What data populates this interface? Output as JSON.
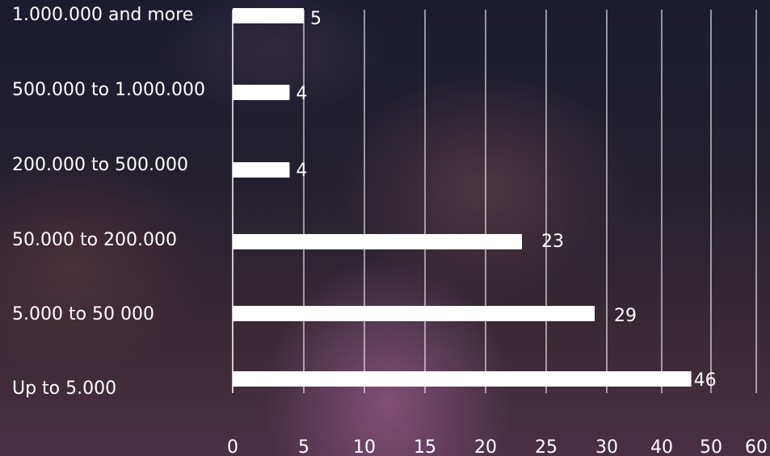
{
  "chart_data": {
    "type": "bar",
    "orientation": "horizontal",
    "categories": [
      "1.000.000 and more",
      "500.000 to 1.000.000",
      "200.000 to 500.000",
      "50.000 to 200.000",
      "5.000 to 50 000",
      "Up to 5.000"
    ],
    "values": [
      5,
      4,
      4,
      23,
      29,
      46
    ],
    "value_labels": [
      "5",
      "4",
      "4",
      "23",
      "29",
      "46"
    ],
    "x_ticks": [
      "0",
      "5",
      "10",
      "15",
      "20",
      "25",
      "30",
      "40",
      "50",
      "60"
    ],
    "xlim": [
      0,
      60
    ],
    "grid": true,
    "bar_color": "#ffffff",
    "text_color": "#ffffff"
  }
}
